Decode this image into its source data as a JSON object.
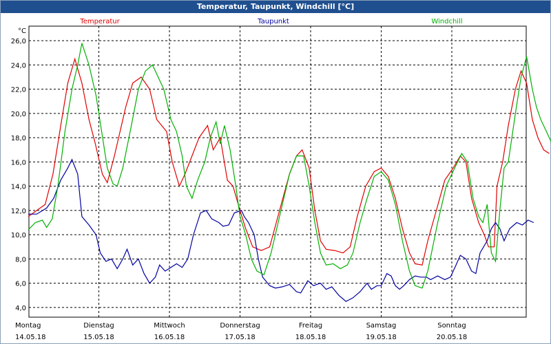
{
  "window": {
    "title": "Temperatur, Taupunkt, Windchill [°C]"
  },
  "chart_data": {
    "type": "line",
    "title": "Temperatur, Taupunkt, Windchill [°C]",
    "ylabel": "°C",
    "ylim": [
      3.2,
      27.2
    ],
    "yticks": [
      "4,0",
      "6,0",
      "8,0",
      "10,0",
      "12,0",
      "14,0",
      "16,0",
      "18,0",
      "20,0",
      "22,0",
      "24,0",
      "26,0"
    ],
    "grid": true,
    "x_axis": {
      "range_days": [
        0,
        7
      ],
      "ticks": [
        {
          "day": 0,
          "weekday": "Montag",
          "date": "14.05.18"
        },
        {
          "day": 1,
          "weekday": "Dienstag",
          "date": "15.05.18"
        },
        {
          "day": 2,
          "weekday": "Mittwoch",
          "date": "16.05.18"
        },
        {
          "day": 3,
          "weekday": "Donnerstag",
          "date": "17.05.18"
        },
        {
          "day": 4,
          "weekday": "Freitag",
          "date": "18.05.18"
        },
        {
          "day": 5,
          "weekday": "Samstag",
          "date": "19.05.18"
        },
        {
          "day": 6,
          "weekday": "Sonntag",
          "date": "20.05.18"
        }
      ]
    },
    "legend_placement": "top",
    "series": [
      {
        "name": "Temperatur",
        "color": "#e00000",
        "points": [
          [
            0.0,
            11.5
          ],
          [
            0.24,
            12.5
          ],
          [
            0.35,
            15.0
          ],
          [
            0.46,
            19.0
          ],
          [
            0.56,
            22.5
          ],
          [
            0.66,
            24.5
          ],
          [
            0.76,
            22.5
          ],
          [
            0.86,
            19.5
          ],
          [
            0.95,
            17.5
          ],
          [
            1.05,
            15.0
          ],
          [
            1.12,
            14.3
          ],
          [
            1.22,
            16.5
          ],
          [
            1.38,
            20.5
          ],
          [
            1.48,
            22.5
          ],
          [
            1.6,
            23.0
          ],
          [
            1.72,
            22.0
          ],
          [
            1.82,
            19.5
          ],
          [
            1.96,
            18.5
          ],
          [
            2.04,
            16.0
          ],
          [
            2.14,
            14.0
          ],
          [
            2.22,
            15.0
          ],
          [
            2.32,
            16.5
          ],
          [
            2.42,
            18.0
          ],
          [
            2.54,
            19.0
          ],
          [
            2.62,
            17.0
          ],
          [
            2.72,
            18.0
          ],
          [
            2.82,
            14.5
          ],
          [
            2.9,
            14.0
          ],
          [
            3.0,
            12.0
          ],
          [
            3.08,
            10.5
          ],
          [
            3.18,
            9.0
          ],
          [
            3.3,
            8.7
          ],
          [
            3.42,
            9.0
          ],
          [
            3.56,
            12.0
          ],
          [
            3.7,
            15.0
          ],
          [
            3.8,
            16.5
          ],
          [
            3.88,
            17.0
          ],
          [
            3.98,
            15.5
          ],
          [
            4.06,
            12.0
          ],
          [
            4.14,
            9.5
          ],
          [
            4.22,
            8.8
          ],
          [
            4.34,
            8.7
          ],
          [
            4.46,
            8.5
          ],
          [
            4.56,
            9.0
          ],
          [
            4.66,
            11.5
          ],
          [
            4.78,
            14.0
          ],
          [
            4.9,
            15.2
          ],
          [
            5.0,
            15.5
          ],
          [
            5.1,
            14.8
          ],
          [
            5.2,
            13.0
          ],
          [
            5.3,
            10.5
          ],
          [
            5.4,
            8.5
          ],
          [
            5.48,
            7.6
          ],
          [
            5.58,
            7.5
          ],
          [
            5.66,
            9.5
          ],
          [
            5.78,
            12.0
          ],
          [
            5.9,
            14.5
          ],
          [
            6.02,
            15.5
          ],
          [
            6.12,
            16.5
          ],
          [
            6.2,
            16.0
          ],
          [
            6.28,
            13.0
          ],
          [
            6.38,
            11.0
          ],
          [
            6.46,
            10.0
          ],
          [
            6.52,
            9.0
          ],
          [
            6.6,
            9.0
          ],
          [
            6.64,
            14.0
          ],
          [
            6.72,
            16.0
          ],
          [
            6.8,
            19.0
          ],
          [
            6.9,
            22.0
          ],
          [
            6.98,
            23.5
          ],
          [
            7.06,
            22.5
          ],
          [
            7.14,
            19.5
          ],
          [
            7.22,
            18.0
          ],
          [
            7.3,
            17.0
          ],
          [
            7.38,
            16.7
          ]
        ]
      },
      {
        "name": "Taupunkt",
        "color": "#0000a0",
        "points": [
          [
            0.0,
            11.7
          ],
          [
            0.12,
            11.7
          ],
          [
            0.26,
            12.2
          ],
          [
            0.36,
            13.0
          ],
          [
            0.46,
            14.5
          ],
          [
            0.56,
            15.5
          ],
          [
            0.62,
            16.2
          ],
          [
            0.7,
            15.0
          ],
          [
            0.76,
            11.5
          ],
          [
            0.86,
            10.8
          ],
          [
            0.96,
            10.0
          ],
          [
            1.02,
            8.5
          ],
          [
            1.1,
            7.8
          ],
          [
            1.18,
            8.0
          ],
          [
            1.26,
            7.2
          ],
          [
            1.34,
            8.0
          ],
          [
            1.4,
            8.8
          ],
          [
            1.48,
            7.5
          ],
          [
            1.56,
            8.0
          ],
          [
            1.64,
            6.8
          ],
          [
            1.72,
            6.0
          ],
          [
            1.8,
            6.5
          ],
          [
            1.86,
            7.5
          ],
          [
            1.94,
            7.0
          ],
          [
            2.02,
            7.3
          ],
          [
            2.1,
            7.6
          ],
          [
            2.18,
            7.3
          ],
          [
            2.26,
            8.0
          ],
          [
            2.34,
            10.0
          ],
          [
            2.44,
            11.8
          ],
          [
            2.52,
            12.0
          ],
          [
            2.6,
            11.3
          ],
          [
            2.7,
            11.0
          ],
          [
            2.76,
            10.7
          ],
          [
            2.84,
            10.8
          ],
          [
            2.92,
            11.8
          ],
          [
            3.02,
            12.0
          ],
          [
            3.06,
            11.5
          ],
          [
            3.12,
            11.0
          ],
          [
            3.2,
            10.0
          ],
          [
            3.26,
            8.0
          ],
          [
            3.32,
            6.5
          ],
          [
            3.42,
            5.8
          ],
          [
            3.5,
            5.6
          ],
          [
            3.6,
            5.7
          ],
          [
            3.7,
            5.9
          ],
          [
            3.8,
            5.3
          ],
          [
            3.86,
            5.2
          ],
          [
            3.96,
            6.2
          ],
          [
            4.04,
            5.8
          ],
          [
            4.14,
            6.0
          ],
          [
            4.22,
            5.5
          ],
          [
            4.3,
            5.7
          ],
          [
            4.4,
            5.0
          ],
          [
            4.5,
            4.5
          ],
          [
            4.6,
            4.8
          ],
          [
            4.7,
            5.3
          ],
          [
            4.8,
            6.0
          ],
          [
            4.86,
            5.5
          ],
          [
            4.94,
            5.8
          ],
          [
            5.0,
            5.8
          ],
          [
            5.08,
            6.8
          ],
          [
            5.14,
            6.6
          ],
          [
            5.2,
            5.8
          ],
          [
            5.26,
            5.5
          ],
          [
            5.32,
            5.8
          ],
          [
            5.4,
            6.3
          ],
          [
            5.48,
            6.6
          ],
          [
            5.56,
            6.5
          ],
          [
            5.64,
            6.5
          ],
          [
            5.7,
            6.3
          ],
          [
            5.8,
            6.6
          ],
          [
            5.9,
            6.3
          ],
          [
            5.98,
            6.5
          ],
          [
            6.06,
            7.5
          ],
          [
            6.12,
            8.3
          ],
          [
            6.2,
            8.0
          ],
          [
            6.28,
            7.0
          ],
          [
            6.34,
            6.8
          ],
          [
            6.4,
            8.5
          ],
          [
            6.5,
            9.5
          ],
          [
            6.56,
            10.5
          ],
          [
            6.62,
            11.0
          ],
          [
            6.68,
            10.5
          ],
          [
            6.74,
            9.5
          ],
          [
            6.82,
            10.5
          ],
          [
            6.92,
            11.0
          ],
          [
            7.0,
            10.8
          ],
          [
            7.08,
            11.2
          ],
          [
            7.16,
            11.0
          ]
        ]
      },
      {
        "name": "Windchill",
        "color": "#00b000",
        "points": [
          [
            0.0,
            10.4
          ],
          [
            0.1,
            11.0
          ],
          [
            0.2,
            11.2
          ],
          [
            0.26,
            10.6
          ],
          [
            0.34,
            11.3
          ],
          [
            0.42,
            14.0
          ],
          [
            0.52,
            18.5
          ],
          [
            0.62,
            22.0
          ],
          [
            0.7,
            24.0
          ],
          [
            0.76,
            25.8
          ],
          [
            0.86,
            24.0
          ],
          [
            0.96,
            21.5
          ],
          [
            1.04,
            18.5
          ],
          [
            1.12,
            15.5
          ],
          [
            1.2,
            14.2
          ],
          [
            1.26,
            14.0
          ],
          [
            1.34,
            15.5
          ],
          [
            1.46,
            19.0
          ],
          [
            1.56,
            22.0
          ],
          [
            1.66,
            23.5
          ],
          [
            1.76,
            24.0
          ],
          [
            1.84,
            23.0
          ],
          [
            1.92,
            22.0
          ],
          [
            2.02,
            19.5
          ],
          [
            2.1,
            18.5
          ],
          [
            2.18,
            16.5
          ],
          [
            2.24,
            14.0
          ],
          [
            2.32,
            13.0
          ],
          [
            2.4,
            14.5
          ],
          [
            2.5,
            16.0
          ],
          [
            2.58,
            18.0
          ],
          [
            2.66,
            19.3
          ],
          [
            2.72,
            17.5
          ],
          [
            2.78,
            19.0
          ],
          [
            2.86,
            17.0
          ],
          [
            2.94,
            14.0
          ],
          [
            3.0,
            11.5
          ],
          [
            3.08,
            10.0
          ],
          [
            3.16,
            8.0
          ],
          [
            3.24,
            7.0
          ],
          [
            3.34,
            6.7
          ],
          [
            3.44,
            8.5
          ],
          [
            3.58,
            12.0
          ],
          [
            3.7,
            15.0
          ],
          [
            3.8,
            16.5
          ],
          [
            3.9,
            16.5
          ],
          [
            3.98,
            14.0
          ],
          [
            4.06,
            11.0
          ],
          [
            4.14,
            8.5
          ],
          [
            4.22,
            7.5
          ],
          [
            4.32,
            7.6
          ],
          [
            4.42,
            7.2
          ],
          [
            4.52,
            7.5
          ],
          [
            4.6,
            8.5
          ],
          [
            4.7,
            11.0
          ],
          [
            4.8,
            13.0
          ],
          [
            4.9,
            14.8
          ],
          [
            5.0,
            15.2
          ],
          [
            5.1,
            14.5
          ],
          [
            5.2,
            12.5
          ],
          [
            5.3,
            9.5
          ],
          [
            5.4,
            7.0
          ],
          [
            5.48,
            5.8
          ],
          [
            5.58,
            5.6
          ],
          [
            5.66,
            7.0
          ],
          [
            5.8,
            11.0
          ],
          [
            5.92,
            14.0
          ],
          [
            6.04,
            15.5
          ],
          [
            6.14,
            16.7
          ],
          [
            6.22,
            16.0
          ],
          [
            6.3,
            13.0
          ],
          [
            6.38,
            11.5
          ],
          [
            6.44,
            11.0
          ],
          [
            6.5,
            12.5
          ],
          [
            6.56,
            8.5
          ],
          [
            6.62,
            7.8
          ],
          [
            6.68,
            12.0
          ],
          [
            6.74,
            15.5
          ],
          [
            6.8,
            16.0
          ],
          [
            6.9,
            20.0
          ],
          [
            6.98,
            23.0
          ],
          [
            7.06,
            24.7
          ],
          [
            7.14,
            22.0
          ],
          [
            7.2,
            20.5
          ],
          [
            7.26,
            19.5
          ],
          [
            7.34,
            18.5
          ],
          [
            7.42,
            17.5
          ]
        ]
      }
    ]
  }
}
